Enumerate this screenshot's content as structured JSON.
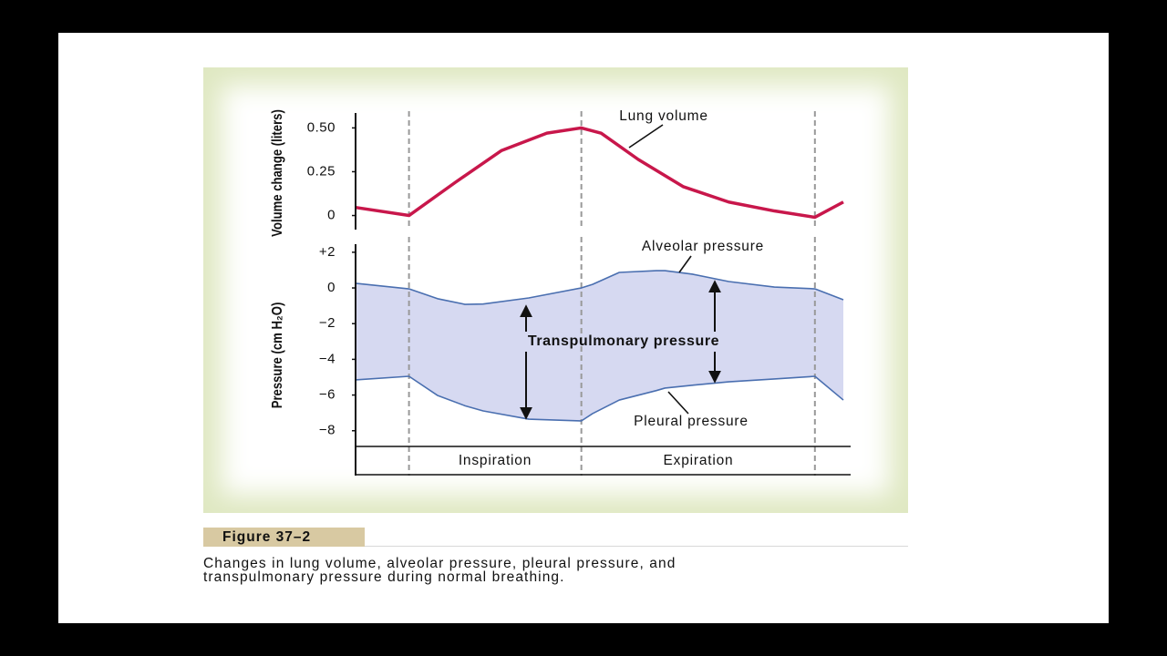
{
  "chart_data": [
    {
      "type": "line",
      "y_label": "Volume change (liters)",
      "xlim": [
        -0.62,
        5.04
      ],
      "ylim": [
        -0.07,
        0.58
      ],
      "yticks": [
        0,
        0.25,
        {
          "value": 0.5,
          "label": "0.50"
        }
      ],
      "vlines": [
        0,
        2,
        4.71
      ],
      "x": [
        -0.62,
        0,
        0.54,
        1.07,
        1.6,
        2,
        2.23,
        2.66,
        3.18,
        3.71,
        4.24,
        4.71,
        5.04
      ],
      "series": [
        {
          "name": "Lung volume",
          "color": "#c8174b",
          "values": [
            0.046,
            0,
            0.19,
            0.37,
            0.47,
            0.5,
            0.47,
            0.32,
            0.165,
            0.077,
            0.026,
            -0.01,
            0.077
          ]
        }
      ]
    },
    {
      "type": "line",
      "y_label": "Pressure (cm H₂O)",
      "xlim": [
        -0.62,
        5.04
      ],
      "ylim": [
        -8.88,
        2.35
      ],
      "yticks": [
        {
          "value": 2,
          "label": "+2"
        },
        0,
        {
          "value": -2,
          "label": "−2"
        },
        {
          "value": -4,
          "label": "−4"
        },
        {
          "value": -6,
          "label": "−6"
        },
        {
          "value": -8,
          "label": "−8"
        }
      ],
      "vlines": [
        0,
        2,
        4.71
      ],
      "fill": "#d6d9f1",
      "annotation": "Transpulmonary pressure",
      "phases": [
        "Inspiration",
        "Expiration"
      ],
      "x": [
        -0.62,
        0,
        0.33,
        0.65,
        0.86,
        1.39,
        2,
        2.13,
        2.44,
        2.87,
        2.97,
        3.29,
        3.71,
        4.24,
        4.71,
        5.04
      ],
      "series": [
        {
          "name": "Alveolar pressure",
          "color": "#4a6fb0",
          "values": [
            0.26,
            -0.05,
            -0.6,
            -0.92,
            -0.9,
            -0.56,
            0,
            0.2,
            0.87,
            0.97,
            0.97,
            0.77,
            0.36,
            0.05,
            -0.05,
            -0.66
          ]
        },
        {
          "name": "Pleural pressure",
          "color": "#4a6fb0",
          "values": [
            -5.15,
            -4.95,
            -6.02,
            -6.6,
            -6.89,
            -7.35,
            -7.45,
            -7.04,
            -6.28,
            -5.75,
            -5.61,
            -5.45,
            -5.26,
            -5.1,
            -4.95,
            -6.28
          ]
        }
      ]
    }
  ],
  "figure": {
    "label": "Figure 37–2",
    "caption_lines": [
      "Changes in lung volume, alveolar pressure, pleural pressure, and",
      "transpulmonary pressure during normal breathing."
    ]
  }
}
